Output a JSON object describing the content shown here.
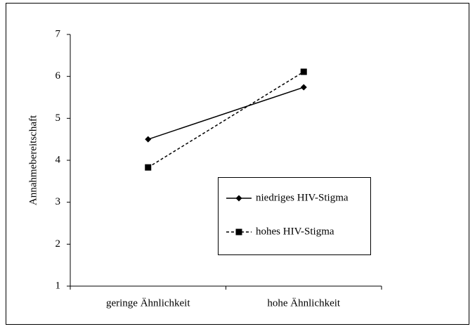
{
  "chart_data": {
    "type": "line",
    "y_label": "Annahmebereitschaft",
    "categories": [
      "geringe Ähnlichkeit",
      "hohe Ähnlichkeit"
    ],
    "series": [
      {
        "name": "niedriges HIV-Stigma",
        "color": "#000000",
        "line_style": "solid",
        "marker": "diamond",
        "values": [
          4.5,
          5.74
        ]
      },
      {
        "name": "hohes HIV-Stigma",
        "color": "#000000",
        "line_style": "dashed",
        "marker": "square",
        "values": [
          3.83,
          6.11
        ]
      }
    ],
    "ylim": [
      1,
      7
    ],
    "yticks": [
      1,
      2,
      3,
      4,
      5,
      6,
      7
    ],
    "grid": false,
    "legend": "lower right"
  }
}
